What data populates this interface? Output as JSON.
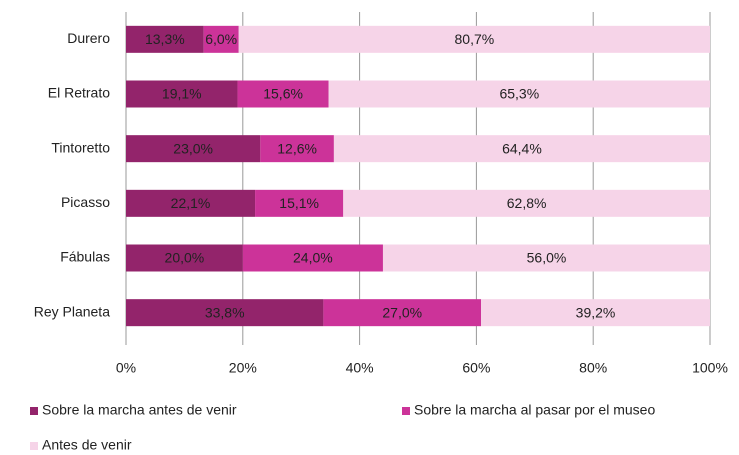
{
  "chart_data": {
    "type": "stacked-barh",
    "categories": [
      "Durero",
      "El Retrato",
      "Tintoretto",
      "Picasso",
      "Fábulas",
      "Rey Planeta"
    ],
    "series": [
      {
        "name": "Sobre la marcha antes de venir",
        "color": "#93246b",
        "values": [
          13.3,
          19.1,
          23.0,
          22.1,
          20.0,
          33.8
        ],
        "value_labels": [
          "13,3%",
          "19,1%",
          "23,0%",
          "22,1%",
          "20,0%",
          "33,8%"
        ]
      },
      {
        "name": "Sobre la marcha al pasar por el museo",
        "color": "#cc3399",
        "values": [
          6.0,
          15.6,
          12.6,
          15.1,
          24.0,
          27.0
        ],
        "value_labels": [
          "6,0%",
          "15,6%",
          "12,6%",
          "15,1%",
          "24,0%",
          "27,0%"
        ]
      },
      {
        "name": "Antes de venir",
        "color": "#f6d4e8",
        "values": [
          80.7,
          65.3,
          64.4,
          62.8,
          56.0,
          39.2
        ],
        "value_labels": [
          "80,7%",
          "65,3%",
          "64,4%",
          "62,8%",
          "56,0%",
          "39,2%"
        ]
      }
    ],
    "xlim": [
      0,
      100
    ],
    "xticks": [
      {
        "value": 0,
        "label": "0%"
      },
      {
        "value": 20,
        "label": "20%"
      },
      {
        "value": 40,
        "label": "40%"
      },
      {
        "value": 60,
        "label": "60%"
      },
      {
        "value": 80,
        "label": "80%"
      },
      {
        "value": 100,
        "label": "100%"
      }
    ],
    "grid": true,
    "legend": "bottom"
  }
}
